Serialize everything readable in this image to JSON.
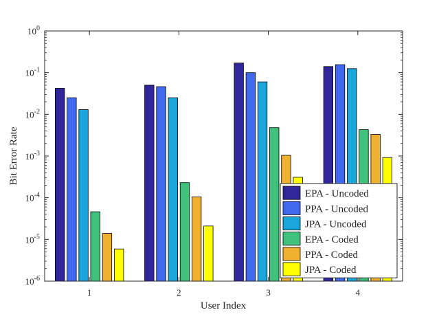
{
  "chart_data": {
    "type": "bar",
    "title": "",
    "xlabel": "User Index",
    "ylabel": "Bit Error Rate",
    "yscale": "log",
    "ylim": [
      1e-06,
      1
    ],
    "categories": [
      "1",
      "2",
      "3",
      "4"
    ],
    "ytick_labels": [
      {
        "base": "10",
        "exp": "-6"
      },
      {
        "base": "10",
        "exp": "-5"
      },
      {
        "base": "10",
        "exp": "-4"
      },
      {
        "base": "10",
        "exp": "-3"
      },
      {
        "base": "10",
        "exp": "-2"
      },
      {
        "base": "10",
        "exp": "-1"
      },
      {
        "base": "10",
        "exp": "0"
      }
    ],
    "legend_position": "bottom-right",
    "series": [
      {
        "name": "EPA - Uncoded",
        "color": "#30269a",
        "values": [
          0.042,
          0.05,
          0.17,
          0.14
        ]
      },
      {
        "name": "PPA - Uncoded",
        "color": "#4169f0",
        "values": [
          0.025,
          0.046,
          0.1,
          0.155
        ]
      },
      {
        "name": "JPA - Uncoded",
        "color": "#1aa6dc",
        "values": [
          0.013,
          0.025,
          0.06,
          0.125
        ]
      },
      {
        "name": "EPA - Coded",
        "color": "#41c27c",
        "values": [
          4.6e-05,
          0.00023,
          0.0048,
          0.0043
        ]
      },
      {
        "name": "PPA - Coded",
        "color": "#f0b030",
        "values": [
          1.4e-05,
          0.000105,
          0.00104,
          0.0033
        ]
      },
      {
        "name": "JPA - Coded",
        "color": "#ffff00",
        "values": [
          5.9e-06,
          2.1e-05,
          0.00031,
          0.00092
        ]
      }
    ]
  }
}
